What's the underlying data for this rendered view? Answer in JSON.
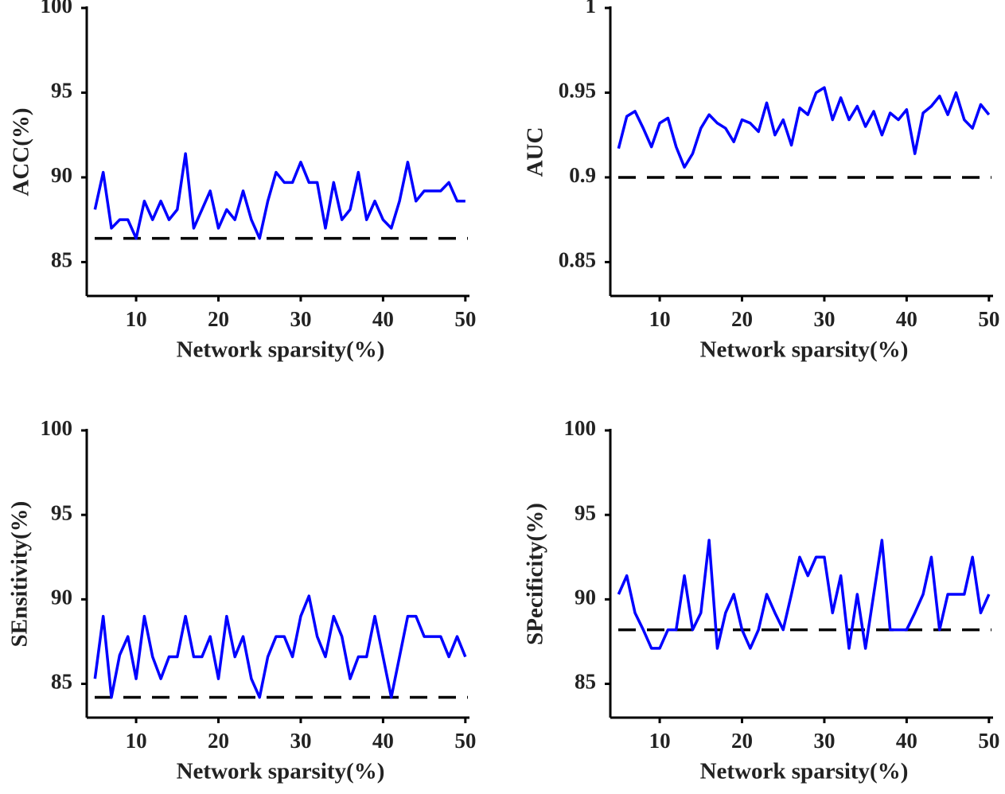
{
  "chart_data": [
    {
      "type": "line",
      "xlabel": "Network sparsity(%)",
      "ylabel": "ACC(%)",
      "x": [
        5,
        6,
        7,
        8,
        9,
        10,
        11,
        12,
        13,
        14,
        15,
        16,
        17,
        18,
        19,
        20,
        21,
        22,
        23,
        24,
        25,
        26,
        27,
        28,
        29,
        30,
        31,
        32,
        33,
        34,
        35,
        36,
        37,
        38,
        39,
        40,
        41,
        42,
        43,
        44,
        45,
        46,
        47,
        48,
        49,
        50
      ],
      "values": [
        88.1,
        90.3,
        87.0,
        87.5,
        87.5,
        86.4,
        88.6,
        87.5,
        88.6,
        87.5,
        88.1,
        91.4,
        87.0,
        88.1,
        89.2,
        87.0,
        88.1,
        87.5,
        89.2,
        87.5,
        86.4,
        88.6,
        90.3,
        89.7,
        89.7,
        90.9,
        89.7,
        89.7,
        87.0,
        89.7,
        87.5,
        88.1,
        90.3,
        87.5,
        88.6,
        87.5,
        87.0,
        88.6,
        90.9,
        88.6,
        89.2,
        89.2,
        89.2,
        89.7,
        88.6,
        88.6
      ],
      "color": "#0000ff",
      "baseline": 86.4,
      "baseline_color": "#000000",
      "xlim": [
        4,
        50.5
      ],
      "xticks": [
        10,
        20,
        30,
        40,
        50
      ],
      "ylim": [
        83,
        100
      ],
      "yticks": [
        85,
        90,
        95,
        100
      ]
    },
    {
      "type": "line",
      "xlabel": "Network sparsity(%)",
      "ylabel": "AUC",
      "x": [
        5,
        6,
        7,
        8,
        9,
        10,
        11,
        12,
        13,
        14,
        15,
        16,
        17,
        18,
        19,
        20,
        21,
        22,
        23,
        24,
        25,
        26,
        27,
        28,
        29,
        30,
        31,
        32,
        33,
        34,
        35,
        36,
        37,
        38,
        39,
        40,
        41,
        42,
        43,
        44,
        45,
        46,
        47,
        48,
        49,
        50
      ],
      "values": [
        0.917,
        0.936,
        0.939,
        0.929,
        0.918,
        0.932,
        0.935,
        0.918,
        0.906,
        0.914,
        0.929,
        0.937,
        0.932,
        0.929,
        0.921,
        0.934,
        0.932,
        0.927,
        0.944,
        0.925,
        0.934,
        0.919,
        0.941,
        0.937,
        0.95,
        0.953,
        0.934,
        0.947,
        0.934,
        0.942,
        0.93,
        0.939,
        0.925,
        0.938,
        0.934,
        0.94,
        0.914,
        0.938,
        0.942,
        0.948,
        0.937,
        0.95,
        0.934,
        0.929,
        0.943,
        0.937
      ],
      "color": "#0000ff",
      "baseline": 0.9,
      "baseline_color": "#000000",
      "xlim": [
        4,
        50.5
      ],
      "xticks": [
        10,
        20,
        30,
        40,
        50
      ],
      "ylim": [
        0.83,
        1
      ],
      "yticks": [
        0.85,
        0.9,
        0.95,
        1
      ]
    },
    {
      "type": "line",
      "xlabel": "Network sparsity(%)",
      "ylabel": "SEnsitivity(%)",
      "x": [
        5,
        6,
        7,
        8,
        9,
        10,
        11,
        12,
        13,
        14,
        15,
        16,
        17,
        18,
        19,
        20,
        21,
        22,
        23,
        24,
        25,
        26,
        27,
        28,
        29,
        30,
        31,
        32,
        33,
        34,
        35,
        36,
        37,
        38,
        39,
        40,
        41,
        42,
        43,
        44,
        45,
        46,
        47,
        48,
        49,
        50
      ],
      "values": [
        85.3,
        89.0,
        84.2,
        86.7,
        87.8,
        85.3,
        89.0,
        86.6,
        85.3,
        86.6,
        86.6,
        89.0,
        86.6,
        86.6,
        87.8,
        85.3,
        89.0,
        86.6,
        87.8,
        85.3,
        84.2,
        86.6,
        87.8,
        87.8,
        86.6,
        89.0,
        90.2,
        87.8,
        86.6,
        89.0,
        87.8,
        85.3,
        86.6,
        86.6,
        89.0,
        86.6,
        84.2,
        86.6,
        89.0,
        89.0,
        87.8,
        87.8,
        87.8,
        86.6,
        87.8,
        86.6
      ],
      "color": "#0000ff",
      "baseline": 84.2,
      "baseline_color": "#000000",
      "xlim": [
        4,
        50.5
      ],
      "xticks": [
        10,
        20,
        30,
        40,
        50
      ],
      "ylim": [
        83,
        100
      ],
      "yticks": [
        85,
        90,
        95,
        100
      ]
    },
    {
      "type": "line",
      "xlabel": "Network sparsity(%)",
      "ylabel": "SPecificity(%)",
      "x": [
        5,
        6,
        7,
        8,
        9,
        10,
        11,
        12,
        13,
        14,
        15,
        16,
        17,
        18,
        19,
        20,
        21,
        22,
        23,
        24,
        25,
        26,
        27,
        28,
        29,
        30,
        31,
        32,
        33,
        34,
        35,
        36,
        37,
        38,
        39,
        40,
        41,
        42,
        43,
        44,
        45,
        46,
        47,
        48,
        49,
        50
      ],
      "values": [
        90.3,
        91.4,
        89.2,
        88.2,
        87.1,
        87.1,
        88.2,
        88.2,
        91.4,
        88.2,
        89.2,
        93.5,
        87.1,
        89.2,
        90.3,
        88.2,
        87.1,
        88.2,
        90.3,
        89.2,
        88.2,
        90.3,
        92.5,
        91.4,
        92.5,
        92.5,
        89.2,
        91.4,
        87.1,
        90.3,
        87.1,
        90.3,
        93.5,
        88.2,
        88.2,
        88.2,
        89.2,
        90.3,
        92.5,
        88.2,
        90.3,
        90.3,
        90.3,
        92.5,
        89.2,
        90.3
      ],
      "color": "#0000ff",
      "baseline": 88.2,
      "baseline_color": "#000000",
      "xlim": [
        4,
        50.5
      ],
      "xticks": [
        10,
        20,
        30,
        40,
        50
      ],
      "ylim": [
        83,
        100
      ],
      "yticks": [
        85,
        90,
        95,
        100
      ]
    }
  ]
}
